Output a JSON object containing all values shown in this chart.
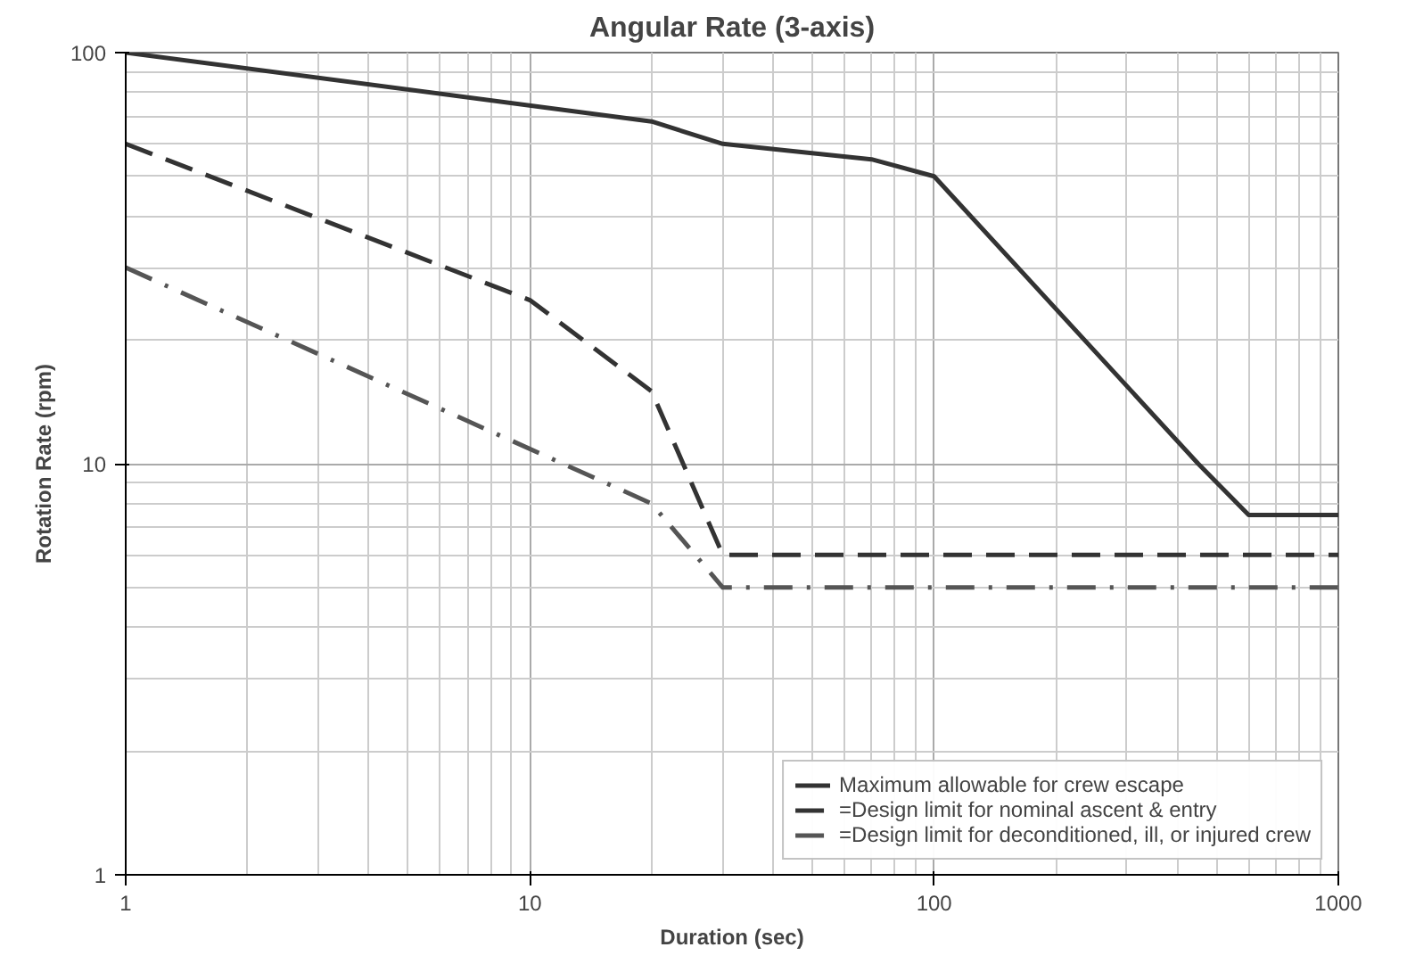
{
  "chart_data": {
    "type": "line",
    "title": "Angular Rate (3-axis)",
    "xlabel": "Duration (sec)",
    "ylabel": "Rotation Rate (rpm)",
    "log": "xy",
    "xlim": [
      1,
      1000
    ],
    "ylim": [
      1,
      100
    ],
    "xticks": [
      1,
      10,
      100,
      1000
    ],
    "yticks": [
      1,
      10,
      100
    ],
    "grid": true,
    "legend": "bottom right",
    "marker": "none",
    "series": [
      {
        "name": "Maximum allowable for crew escape",
        "color": "#333333",
        "line_style": "solid",
        "x": [
          1,
          20,
          30,
          70,
          100,
          450,
          600,
          1000
        ],
        "values": [
          100,
          68,
          60,
          55,
          50,
          10,
          7.5,
          7.5
        ]
      },
      {
        "name": "=Design limit for nominal ascent & entry",
        "color": "#333333",
        "line_style": "dashed",
        "x": [
          1,
          10,
          20,
          30,
          1000
        ],
        "values": [
          60,
          25,
          15,
          6,
          6
        ]
      },
      {
        "name": "=Design limit for deconditioned, ill, or injured crew",
        "color": "#555555",
        "line_style": "dashdot",
        "x": [
          1,
          20,
          30,
          1000
        ],
        "values": [
          30,
          8,
          5,
          5
        ]
      }
    ]
  }
}
